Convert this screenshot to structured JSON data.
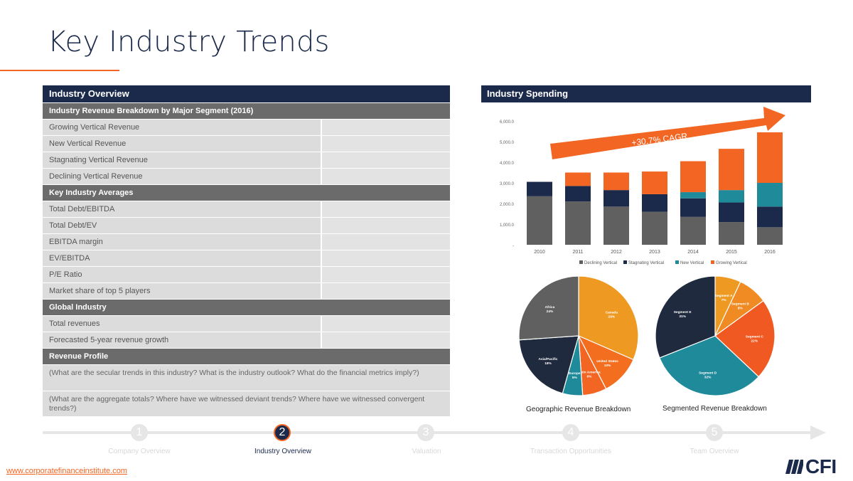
{
  "page": {
    "title": "Key Industry Trends",
    "footer_link": "www.corporatefinanceinstitute.com",
    "logo_text": "CFI"
  },
  "colors": {
    "navy": "#1b2a4a",
    "orange": "#f26522",
    "gray_section": "#6b6b6b",
    "teal": "#1f8a9a",
    "dark_gray": "#606060"
  },
  "overview": {
    "header": "Industry Overview",
    "sections": {
      "revenue_breakdown": "Industry Revenue Breakdown by Major Segment (2016)",
      "averages": "Key Industry Averages",
      "global": "Global Industry",
      "profile": "Revenue Profile"
    },
    "revenue_rows": [
      "Growing Vertical Revenue",
      "New Vertical Revenue",
      "Stagnating Vertical Revenue",
      "Declining Vertical Revenue"
    ],
    "average_rows": [
      "Total Debt/EBITDA",
      "Total Debt/EV",
      "EBITDA margin",
      "EV/EBITDA",
      "P/E Ratio",
      "Market share of top 5 players"
    ],
    "global_rows": [
      "Total revenues",
      "Forecasted 5-year revenue growth"
    ],
    "profile_text": [
      "(What are the secular trends in this industry? What is the industry outlook? What do the financial metrics imply?)",
      "(What are the aggregate totals? Where have we witnessed deviant trends? Where have we witnessed convergent trends?)"
    ]
  },
  "spending": {
    "header": "Industry Spending",
    "cagr_label": "+30.7% CAGR"
  },
  "chart_data": [
    {
      "type": "bar",
      "stacked": true,
      "categories": [
        "2010",
        "2011",
        "2012",
        "2013",
        "2014",
        "2015",
        "2016"
      ],
      "series": [
        {
          "name": "Declining Vertical",
          "color": "#606060",
          "values": [
            2350,
            2100,
            1850,
            1600,
            1350,
            1100,
            850
          ]
        },
        {
          "name": "Stagnating Vertical",
          "color": "#1b2a4a",
          "values": [
            700,
            750,
            800,
            850,
            900,
            950,
            1000
          ]
        },
        {
          "name": "New Vertical",
          "color": "#1f8a9a",
          "values": [
            0,
            0,
            0,
            0,
            300,
            600,
            1150
          ]
        },
        {
          "name": "Growing Vertical",
          "color": "#f26522",
          "values": [
            0,
            650,
            850,
            1100,
            1500,
            2000,
            2450
          ]
        }
      ],
      "ylim": [
        0,
        6000
      ],
      "yticks": [
        "-",
        "1,000.0",
        "2,000.0",
        "3,000.0",
        "4,000.0",
        "5,000.0",
        "6,000.0"
      ],
      "legend": "bottom",
      "grid": false
    },
    {
      "type": "pie",
      "title": "Geographic Revenue Breakdown",
      "slices": [
        {
          "name": "Canada",
          "value": 29,
          "label": "29%",
          "color": "#ee9a22"
        },
        {
          "name": "United States",
          "value": 10,
          "label": "10%",
          "color": "#f36f1f"
        },
        {
          "name": "Latin America",
          "value": 6,
          "label": "6%",
          "color": "#f26522"
        },
        {
          "name": "Europe",
          "value": 5,
          "label": "5%",
          "color": "#1f8a9a"
        },
        {
          "name": "Asia/Pacific",
          "value": 18,
          "label": "18%",
          "color": "#1f2a3f"
        },
        {
          "name": "Africa",
          "value": 24,
          "label": "24%",
          "color": "#606060"
        }
      ]
    },
    {
      "type": "pie",
      "title": "Segmented Revenue Breakdown",
      "slices": [
        {
          "name": "Segment A",
          "value": 7,
          "label": "7%",
          "color": "#ee9a22"
        },
        {
          "name": "Segment B",
          "value": 8,
          "label": "8%",
          "color": "#f08a22"
        },
        {
          "name": "Segment C",
          "value": 22,
          "label": "22%",
          "color": "#f05a22"
        },
        {
          "name": "Segment D",
          "value": 32,
          "label": "32%",
          "color": "#1f8a9a"
        },
        {
          "name": "Segment E",
          "value": 31,
          "label": "31%",
          "color": "#1f2a3f"
        }
      ]
    }
  ],
  "nav": {
    "steps": [
      {
        "number": "1",
        "label": "Company Overview",
        "active": false
      },
      {
        "number": "2",
        "label": "Industry Overview",
        "active": true
      },
      {
        "number": "3",
        "label": "Valuation",
        "active": false
      },
      {
        "number": "4",
        "label": "Transaction Opportunities",
        "active": false
      },
      {
        "number": "5",
        "label": "Team Overview",
        "active": false
      }
    ]
  }
}
